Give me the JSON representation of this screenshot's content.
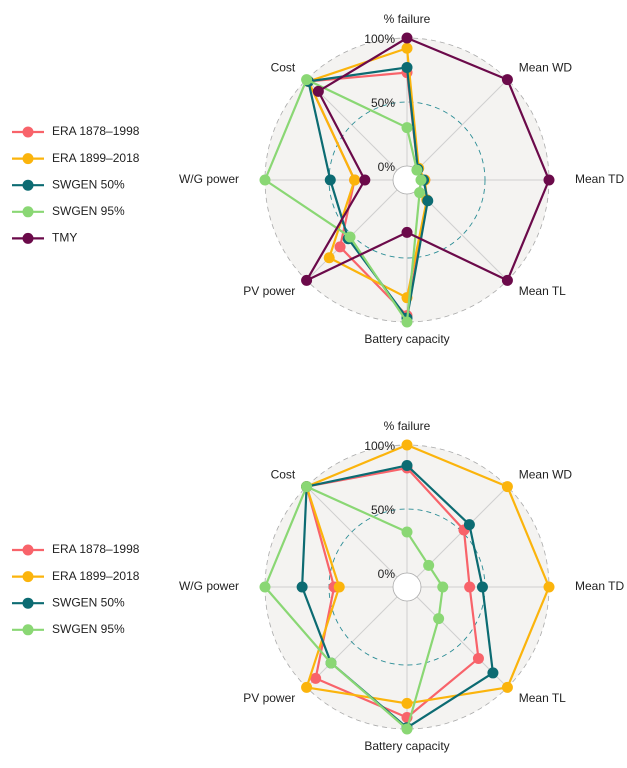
{
  "chart_data": [
    {
      "type": "radar",
      "categories": [
        "% failure",
        "Mean WD",
        "Mean TD",
        "Mean TL",
        "Battery capacity",
        "PV power",
        "W/G power",
        "Cost"
      ],
      "rlim": [
        0,
        100
      ],
      "rticks": [
        {
          "value": 0,
          "label": "0%"
        },
        {
          "value": 50,
          "label": "50%"
        },
        {
          "value": 100,
          "label": "100%"
        }
      ],
      "legend": "left",
      "series": [
        {
          "name": "ERA 1878–1998",
          "color": "#f8636a",
          "values": [
            73,
            1,
            3,
            11,
            95,
            63,
            30,
            98
          ]
        },
        {
          "name": "ERA 1899–2018",
          "color": "#fbb40c",
          "values": [
            92,
            2,
            3,
            11,
            81,
            75,
            30,
            98
          ]
        },
        {
          "name": "SWGEN 50%",
          "color": "#0c6b72",
          "values": [
            77,
            1,
            2,
            12,
            97,
            54,
            49,
            98
          ]
        },
        {
          "name": "SWGEN 95%",
          "color": "#8ad774",
          "values": [
            30,
            0,
            0,
            3,
            100,
            52,
            100,
            100
          ]
        },
        {
          "name": "TMY",
          "color": "#6b0a4a",
          "values": [
            100,
            100,
            100,
            100,
            30,
            100,
            22,
            87
          ]
        }
      ]
    },
    {
      "type": "radar",
      "categories": [
        "% failure",
        "Mean WD",
        "Mean TD",
        "Mean TL",
        "Battery capacity",
        "PV power",
        "W/G power",
        "Cost"
      ],
      "rlim": [
        0,
        100
      ],
      "rticks": [
        {
          "value": 0,
          "label": "0%"
        },
        {
          "value": 50,
          "label": "50%"
        },
        {
          "value": 100,
          "label": "100%"
        }
      ],
      "legend": "left",
      "series": [
        {
          "name": "ERA 1878–1998",
          "color": "#f8636a",
          "values": [
            82,
            52,
            38,
            68,
            91,
            90,
            46,
            100
          ]
        },
        {
          "name": "ERA 1899–2018",
          "color": "#fbb40c",
          "values": [
            100,
            100,
            100,
            100,
            80,
            100,
            42,
            100
          ]
        },
        {
          "name": "SWGEN 50%",
          "color": "#0c6b72",
          "values": [
            84,
            58,
            48,
            84,
            99,
            73,
            71,
            100
          ]
        },
        {
          "name": "SWGEN 95%",
          "color": "#8ad774",
          "values": [
            32,
            13,
            17,
            24,
            100,
            73,
            100,
            100
          ]
        }
      ]
    }
  ]
}
